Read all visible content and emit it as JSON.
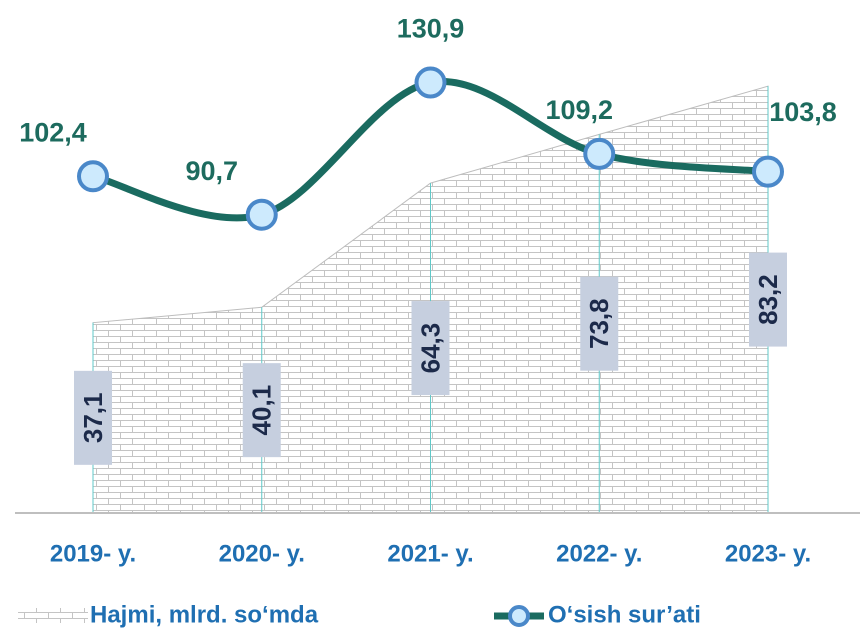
{
  "chart_data": {
    "type": "area-line",
    "categories": [
      "2019- y.",
      "2020- y.",
      "2021- y.",
      "2022- y.",
      "2023- y."
    ],
    "series": [
      {
        "name": "Hajmi, mlrd. so‘mda",
        "type": "area",
        "color": "#bdbdbd",
        "values": [
          37.1,
          40.1,
          64.3,
          73.8,
          83.2
        ],
        "value_labels": [
          "37,1",
          "40,1",
          "64,3",
          "73,8",
          "83,2"
        ]
      },
      {
        "name": "O‘sish sur’ati",
        "type": "line",
        "axis": "y2",
        "color": "#1a6b60",
        "values": [
          102.4,
          90.7,
          130.9,
          109.2,
          103.8
        ],
        "value_labels": [
          "102,4",
          "90,7",
          "130,9",
          "109,2",
          "103,8"
        ]
      }
    ],
    "ylim": [
      0,
      100
    ],
    "y2lim": [
      0,
      156
    ]
  }
}
